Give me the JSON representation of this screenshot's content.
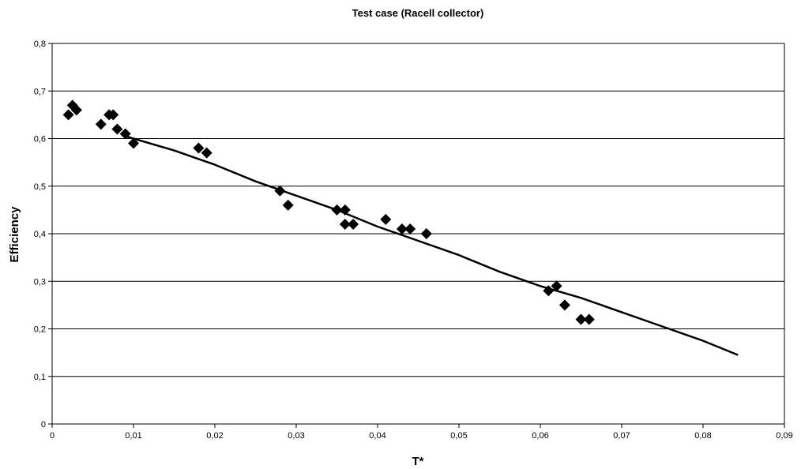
{
  "chart_data": {
    "type": "scatter",
    "title": "Test case (Racell collector)",
    "xlabel": "T*",
    "ylabel": "Efficiency",
    "xlim": [
      0,
      0.09
    ],
    "ylim": [
      0,
      0.8
    ],
    "grid": "horizontal",
    "legend": "none",
    "x_ticks": [
      "0",
      "0,01",
      "0,02",
      "0,03",
      "0,04",
      "0,05",
      "0,06",
      "0,07",
      "0,08",
      "0,09"
    ],
    "y_ticks": [
      "0",
      "0,1",
      "0,2",
      "0,3",
      "0,4",
      "0,5",
      "0,6",
      "0,7",
      "0,8"
    ],
    "series": [
      {
        "type": "scatter",
        "marker": "diamond",
        "color": "#000000",
        "points": [
          [
            0.002,
            0.65
          ],
          [
            0.0025,
            0.67
          ],
          [
            0.003,
            0.66
          ],
          [
            0.006,
            0.63
          ],
          [
            0.007,
            0.65
          ],
          [
            0.0075,
            0.65
          ],
          [
            0.008,
            0.62
          ],
          [
            0.009,
            0.61
          ],
          [
            0.01,
            0.59
          ],
          [
            0.018,
            0.58
          ],
          [
            0.019,
            0.57
          ],
          [
            0.028,
            0.49
          ],
          [
            0.029,
            0.46
          ],
          [
            0.035,
            0.45
          ],
          [
            0.036,
            0.45
          ],
          [
            0.036,
            0.42
          ],
          [
            0.037,
            0.42
          ],
          [
            0.041,
            0.43
          ],
          [
            0.043,
            0.41
          ],
          [
            0.044,
            0.41
          ],
          [
            0.046,
            0.4
          ],
          [
            0.061,
            0.28
          ],
          [
            0.062,
            0.29
          ],
          [
            0.063,
            0.25
          ],
          [
            0.065,
            0.22
          ],
          [
            0.066,
            0.22
          ]
        ]
      },
      {
        "type": "line",
        "color": "#000000",
        "points": [
          [
            0.009,
            0.605
          ],
          [
            0.015,
            0.575
          ],
          [
            0.02,
            0.545
          ],
          [
            0.025,
            0.51
          ],
          [
            0.03,
            0.48
          ],
          [
            0.035,
            0.45
          ],
          [
            0.04,
            0.415
          ],
          [
            0.045,
            0.385
          ],
          [
            0.05,
            0.355
          ],
          [
            0.055,
            0.32
          ],
          [
            0.06,
            0.29
          ],
          [
            0.065,
            0.265
          ],
          [
            0.07,
            0.235
          ],
          [
            0.075,
            0.205
          ],
          [
            0.08,
            0.175
          ],
          [
            0.0843,
            0.145
          ]
        ]
      }
    ]
  }
}
